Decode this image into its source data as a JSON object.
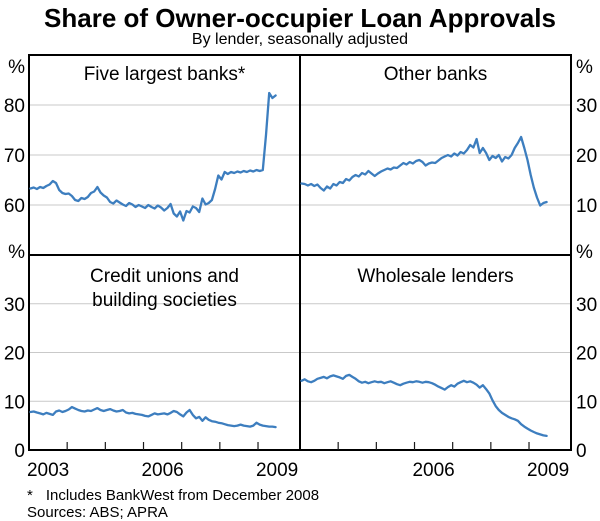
{
  "header": {
    "title": "Share of Owner-occupier Loan Approvals",
    "subtitle": "By lender, seasonally adjusted"
  },
  "footnotes": {
    "asterisk": "*",
    "note": "Includes BankWest from December 2008",
    "sources": "Sources: ABS; APRA"
  },
  "colors": {
    "line": "#3D7EBF",
    "grid": "#C9C9C9",
    "frame": "#000000",
    "tick": "#1A1A1A",
    "background": "#FFFFFF"
  },
  "chart_data": [
    {
      "type": "line",
      "id": "five-largest-banks",
      "panel": "top-left",
      "title": "Five largest banks*",
      "unit": "%",
      "axis_side": "left",
      "ylim": [
        50,
        90
      ],
      "yticks": [
        60,
        70,
        80
      ],
      "xlim": [
        2002.5,
        2009.6
      ],
      "x_start": 2002.54,
      "x_end": 2008.96,
      "xticks": [
        2003.5,
        2004.5,
        2005.5,
        2006.5,
        2007.5,
        2008.5
      ],
      "x_year_labels": [
        2003,
        2006,
        2009
      ],
      "grid": true,
      "legend": "none",
      "values": [
        63.3,
        63.5,
        63.2,
        63.6,
        63.4,
        63.8,
        64.1,
        64.8,
        64.4,
        63.0,
        62.4,
        62.2,
        62.3,
        61.8,
        61.0,
        60.8,
        61.4,
        61.2,
        61.6,
        62.4,
        62.7,
        63.6,
        62.5,
        61.9,
        61.5,
        60.6,
        60.3,
        60.9,
        60.5,
        60.1,
        59.8,
        60.4,
        60.1,
        59.6,
        60.0,
        59.7,
        59.4,
        60.0,
        59.6,
        59.3,
        59.9,
        59.5,
        58.9,
        59.4,
        60.2,
        58.3,
        57.7,
        58.7,
        56.9,
        58.8,
        58.5,
        59.7,
        59.4,
        58.6,
        61.3,
        60.1,
        60.4,
        61.0,
        63.2,
        65.9,
        65.1,
        66.6,
        66.2,
        66.6,
        66.4,
        66.7,
        66.5,
        66.8,
        66.6,
        66.9,
        66.7,
        67.0,
        66.8,
        67.0,
        74.0,
        82.4,
        81.4,
        81.9
      ]
    },
    {
      "type": "line",
      "id": "other-banks",
      "panel": "top-right",
      "title": "Other banks",
      "unit": "%",
      "axis_side": "right",
      "ylim": [
        0,
        40
      ],
      "yticks": [
        10,
        20,
        30
      ],
      "xlim": [
        2002.5,
        2009.6
      ],
      "x_start": 2002.54,
      "x_end": 2008.96,
      "xticks": [
        2003.5,
        2004.5,
        2005.5,
        2006.5,
        2007.5,
        2008.5
      ],
      "x_year_labels": [
        2006,
        2009
      ],
      "grid": true,
      "legend": "none",
      "values": [
        14.3,
        14.2,
        13.9,
        14.2,
        13.8,
        14.1,
        13.4,
        12.9,
        13.7,
        13.3,
        14.2,
        13.9,
        14.6,
        14.4,
        15.2,
        14.9,
        15.6,
        16.0,
        15.7,
        16.4,
        16.1,
        16.8,
        16.3,
        15.8,
        16.3,
        16.7,
        17.0,
        17.3,
        17.1,
        17.5,
        17.4,
        17.9,
        18.4,
        18.1,
        18.6,
        18.3,
        18.8,
        19.0,
        18.6,
        17.9,
        18.3,
        18.5,
        18.4,
        18.9,
        19.4,
        19.7,
        20.0,
        19.7,
        20.3,
        19.9,
        20.6,
        20.3,
        21.0,
        22.0,
        21.5,
        23.2,
        20.4,
        21.4,
        20.4,
        19.0,
        19.8,
        19.4,
        20.0,
        18.7,
        19.6,
        19.3,
        20.0,
        21.4,
        22.4,
        23.6,
        21.4,
        19.0,
        16.0,
        13.5,
        11.5,
        9.9,
        10.4,
        10.6
      ]
    },
    {
      "type": "line",
      "id": "credit-unions-building-societies",
      "panel": "bottom-left",
      "title": "Credit unions and building societies",
      "title_lines": [
        "Credit unions and",
        "building societies"
      ],
      "unit": "%",
      "axis_side": "left",
      "ylim": [
        0,
        40
      ],
      "yticks": [
        0,
        10,
        20,
        30
      ],
      "xlim": [
        2002.5,
        2009.6
      ],
      "x_start": 2002.54,
      "x_end": 2008.96,
      "xticks": [
        2003.5,
        2004.5,
        2005.5,
        2006.5,
        2007.5,
        2008.5
      ],
      "x_year_labels": [
        2003,
        2006,
        2009
      ],
      "grid": true,
      "legend": "none",
      "values": [
        7.8,
        7.9,
        7.7,
        7.5,
        7.3,
        7.6,
        7.4,
        7.2,
        7.9,
        8.1,
        7.8,
        8.0,
        8.3,
        8.8,
        8.5,
        8.2,
        8.0,
        7.9,
        8.1,
        8.0,
        8.3,
        8.6,
        8.2,
        8.0,
        8.2,
        8.4,
        8.1,
        7.9,
        8.0,
        8.2,
        7.7,
        7.5,
        7.6,
        7.4,
        7.3,
        7.2,
        7.0,
        6.9,
        7.2,
        7.5,
        7.3,
        7.4,
        7.5,
        7.3,
        7.6,
        8.0,
        7.8,
        7.3,
        6.9,
        7.7,
        8.2,
        7.2,
        6.5,
        6.8,
        6.0,
        6.7,
        6.2,
        5.9,
        5.8,
        5.6,
        5.5,
        5.3,
        5.1,
        5.0,
        4.9,
        5.0,
        5.2,
        5.0,
        4.9,
        4.8,
        5.0,
        5.6,
        5.2,
        5.0,
        4.9,
        4.8,
        4.8,
        4.7
      ]
    },
    {
      "type": "line",
      "id": "wholesale-lenders",
      "panel": "bottom-right",
      "title": "Wholesale lenders",
      "unit": "%",
      "axis_side": "right",
      "ylim": [
        0,
        40
      ],
      "yticks": [
        0,
        10,
        20,
        30
      ],
      "xlim": [
        2002.5,
        2009.6
      ],
      "x_start": 2002.54,
      "x_end": 2008.96,
      "xticks": [
        2003.5,
        2004.5,
        2005.5,
        2006.5,
        2007.5,
        2008.5
      ],
      "x_year_labels": [
        2006,
        2009
      ],
      "grid": true,
      "legend": "none",
      "values": [
        14.2,
        14.5,
        14.1,
        13.9,
        14.2,
        14.6,
        14.8,
        15.0,
        14.7,
        15.1,
        15.3,
        15.1,
        14.9,
        14.6,
        15.2,
        15.4,
        15.0,
        14.6,
        14.1,
        13.8,
        14.0,
        13.7,
        13.9,
        14.1,
        13.9,
        14.0,
        13.7,
        13.9,
        14.1,
        13.8,
        13.5,
        13.3,
        13.6,
        13.8,
        14.0,
        13.9,
        14.1,
        14.0,
        13.8,
        14.0,
        13.9,
        13.7,
        13.4,
        13.0,
        12.7,
        12.4,
        12.9,
        13.3,
        13.0,
        13.6,
        13.9,
        14.2,
        13.9,
        14.1,
        13.8,
        13.4,
        12.8,
        13.3,
        12.5,
        11.6,
        10.2,
        9.0,
        8.2,
        7.6,
        7.2,
        6.8,
        6.5,
        6.3,
        6.0,
        5.3,
        4.8,
        4.4,
        4.0,
        3.7,
        3.4,
        3.2,
        3.0,
        2.9
      ]
    }
  ]
}
